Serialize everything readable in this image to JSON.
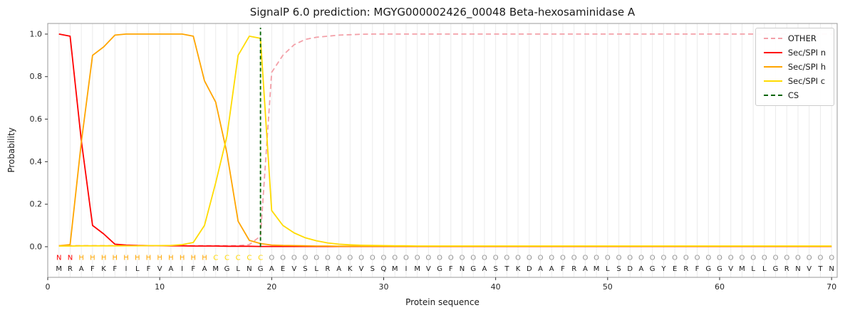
{
  "colors": {
    "grid": "#ebebeb",
    "frame": "#9a9a9a",
    "tick": "#333333",
    "sequence_letters": "#1a1a1a"
  },
  "chart_data": {
    "type": "line",
    "title": "SignalP 6.0 prediction: MGYG000002426_00048 Beta-hexosaminidase A",
    "xlabel": "Protein sequence",
    "ylabel": "Probability",
    "x_note": "x values are residue positions 1..70",
    "xlim": [
      0,
      70.5
    ],
    "ylim": [
      -0.144,
      1.05
    ],
    "xticks": [
      0,
      10,
      20,
      30,
      40,
      50,
      60,
      70
    ],
    "yticks": [
      0.0,
      0.2,
      0.4,
      0.6,
      0.8,
      1.0
    ],
    "grid": "vertical line at every residue position",
    "legend_position": "upper-right",
    "sequence": "MRAFKFILFVAIFAMGLNGAEVSLRAKVSQMIMVGFNGASTKDAAFRAMLSDAGYERFGGVMLLGRNVTN",
    "regions": [
      {
        "letter": "N",
        "start": 1,
        "end": 2,
        "color": "#ff0000"
      },
      {
        "letter": "H",
        "start": 3,
        "end": 14,
        "color": "#ffa500"
      },
      {
        "letter": "C",
        "start": 15,
        "end": 19,
        "color": "#ffd700"
      },
      {
        "letter": "O",
        "start": 20,
        "end": 70,
        "color": "#909090"
      }
    ],
    "cs": {
      "label": "CS",
      "position": 19,
      "color": "#006400"
    },
    "series": [
      {
        "name": "OTHER",
        "color": "#f3a0a8",
        "dash": true,
        "values": [
          0.005,
          0.005,
          0.005,
          0.005,
          0.005,
          0.005,
          0.005,
          0.005,
          0.005,
          0.005,
          0.005,
          0.005,
          0.005,
          0.005,
          0.005,
          0.005,
          0.005,
          0.01,
          0.05,
          0.82,
          0.9,
          0.95,
          0.975,
          0.985,
          0.99,
          0.995,
          0.997,
          0.999,
          1.0,
          1.0,
          1.0,
          1.0,
          1.0,
          1.0,
          1.0,
          1.0,
          1.0,
          1.0,
          1.0,
          1.0,
          1.0,
          1.0,
          1.0,
          1.0,
          1.0,
          1.0,
          1.0,
          1.0,
          1.0,
          1.0,
          1.0,
          1.0,
          1.0,
          1.0,
          1.0,
          1.0,
          1.0,
          1.0,
          1.0,
          1.0,
          1.0,
          1.0,
          1.0,
          1.0,
          1.0,
          1.0,
          1.0,
          1.0,
          1.0,
          1.0
        ]
      },
      {
        "name": "Sec/SPI n",
        "color": "#ff0000",
        "dash": false,
        "values": [
          1.0,
          0.99,
          0.5,
          0.1,
          0.06,
          0.012,
          0.008,
          0.006,
          0.005,
          0.005,
          0.004,
          0.004,
          0.003,
          0.003,
          0.003,
          0.002,
          0.002,
          0.002,
          0.001,
          0.001,
          0.001,
          0.001,
          0.001,
          0.001,
          0.001,
          0.001,
          0.001,
          0.001,
          0.001,
          0.001,
          0.001,
          0.001,
          0.001,
          0.001,
          0.001,
          0.001,
          0.001,
          0.001,
          0.001,
          0.001,
          0.001,
          0.001,
          0.001,
          0.001,
          0.001,
          0.001,
          0.001,
          0.001,
          0.001,
          0.001,
          0.001,
          0.001,
          0.001,
          0.001,
          0.001,
          0.001,
          0.001,
          0.001,
          0.001,
          0.001,
          0.001,
          0.001,
          0.001,
          0.001,
          0.001,
          0.001,
          0.001,
          0.001,
          0.001,
          0.001
        ]
      },
      {
        "name": "Sec/SPI h",
        "color": "#ffa500",
        "dash": false,
        "values": [
          0.004,
          0.01,
          0.49,
          0.9,
          0.94,
          0.995,
          1.0,
          1.0,
          1.0,
          1.0,
          1.0,
          1.0,
          0.99,
          0.78,
          0.68,
          0.44,
          0.12,
          0.03,
          0.015,
          0.008,
          0.006,
          0.005,
          0.004,
          0.003,
          0.003,
          0.002,
          0.002,
          0.002,
          0.002,
          0.002,
          0.002,
          0.002,
          0.002,
          0.002,
          0.002,
          0.002,
          0.002,
          0.002,
          0.002,
          0.002,
          0.002,
          0.002,
          0.002,
          0.002,
          0.002,
          0.002,
          0.002,
          0.002,
          0.002,
          0.002,
          0.002,
          0.002,
          0.002,
          0.002,
          0.002,
          0.002,
          0.002,
          0.002,
          0.002,
          0.002,
          0.002,
          0.002,
          0.002,
          0.002,
          0.002,
          0.002,
          0.002,
          0.002,
          0.002,
          0.002
        ]
      },
      {
        "name": "Sec/SPI c",
        "color": "#ffdb00",
        "dash": false,
        "values": [
          0.003,
          0.003,
          0.004,
          0.004,
          0.004,
          0.004,
          0.004,
          0.004,
          0.005,
          0.005,
          0.006,
          0.01,
          0.02,
          0.1,
          0.3,
          0.52,
          0.9,
          0.99,
          0.98,
          0.17,
          0.1,
          0.065,
          0.042,
          0.028,
          0.018,
          0.012,
          0.009,
          0.007,
          0.006,
          0.005,
          0.004,
          0.004,
          0.003,
          0.003,
          0.003,
          0.003,
          0.003,
          0.003,
          0.003,
          0.003,
          0.003,
          0.003,
          0.003,
          0.003,
          0.003,
          0.003,
          0.003,
          0.003,
          0.003,
          0.003,
          0.003,
          0.003,
          0.003,
          0.003,
          0.003,
          0.003,
          0.003,
          0.003,
          0.003,
          0.003,
          0.003,
          0.003,
          0.003,
          0.003,
          0.003,
          0.003,
          0.003,
          0.003,
          0.003,
          0.003
        ]
      }
    ]
  }
}
